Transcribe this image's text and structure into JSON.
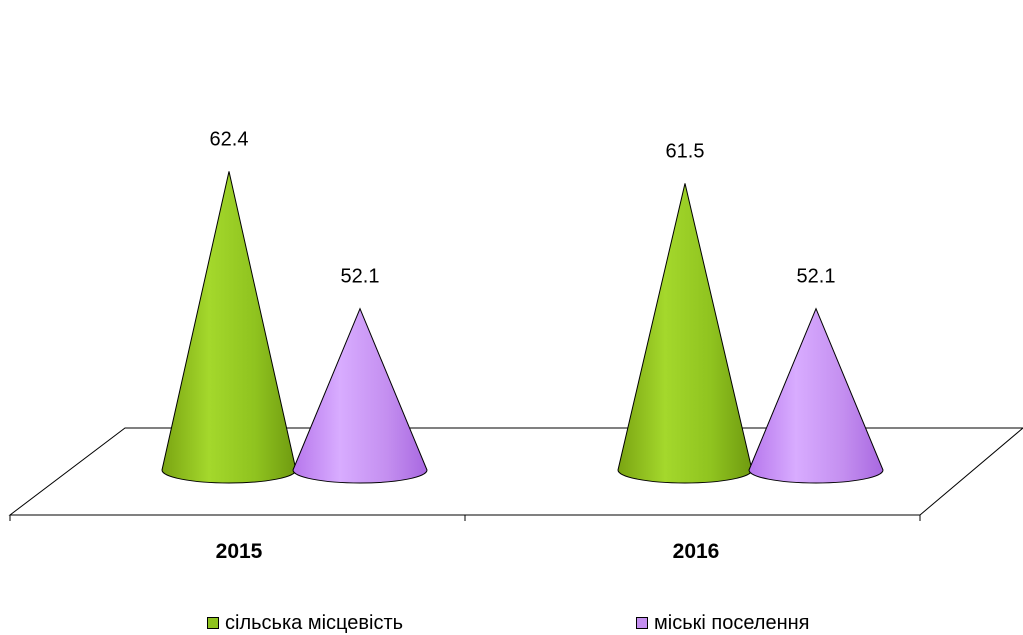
{
  "chart_data": {
    "type": "bar",
    "style": "3d-cone",
    "title": "",
    "xlabel": "",
    "ylabel": "",
    "categories": [
      "2015",
      "2016"
    ],
    "series": [
      {
        "name": "сільська місцевість",
        "values": [
          62.4,
          61.5
        ],
        "color": "#8fc31f"
      },
      {
        "name": "міські поселення",
        "values": [
          52.1,
          52.1
        ],
        "color": "#c48ff0"
      }
    ],
    "data_labels": [
      [
        "62.4",
        "61.5"
      ],
      [
        "52.1",
        "52.1"
      ]
    ],
    "ylim": [
      40,
      64
    ],
    "grid": false,
    "legend_position": "bottom"
  }
}
